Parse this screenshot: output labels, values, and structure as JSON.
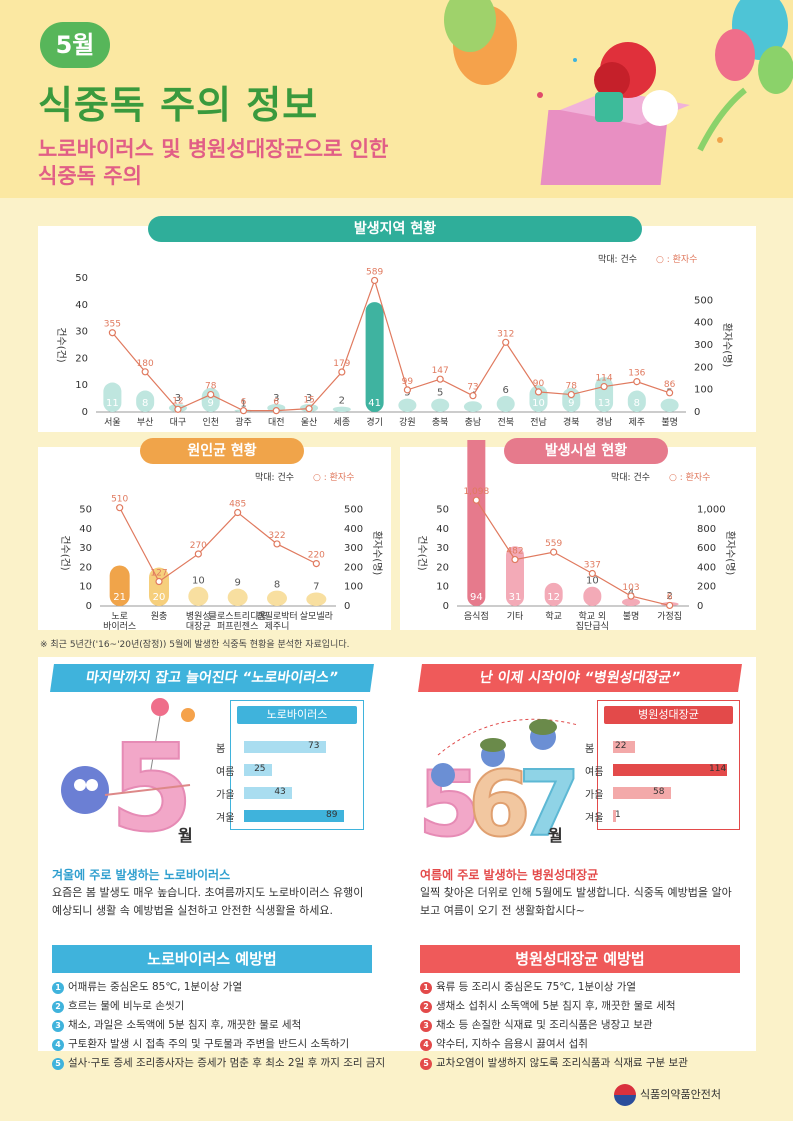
{
  "header": {
    "month": "5월",
    "title": "식중독 주의 정보",
    "subtitle_line1": "노로바이러스 및 병원성대장균으로 인한",
    "subtitle_line2": "식중독 주의"
  },
  "region": {
    "title": "발생지역 현황",
    "legend_bar": "막대: 건수",
    "legend_line": "○ : 환자수",
    "ylabel_left": "건수(건)",
    "ylabel_right": "환자수(명)",
    "chart_data": {
      "type": "bar+line",
      "categories": [
        "서울",
        "부산",
        "대구",
        "인천",
        "광주",
        "대전",
        "울산",
        "세종",
        "경기",
        "강원",
        "충북",
        "충남",
        "전북",
        "전남",
        "경북",
        "경남",
        "제주",
        "불명"
      ],
      "series": [
        {
          "name": "건수",
          "values": [
            11,
            8,
            3,
            9,
            1,
            3,
            3,
            2,
            41,
            5,
            5,
            4,
            6,
            10,
            9,
            13,
            8,
            5
          ]
        },
        {
          "name": "환자수",
          "values": [
            355,
            180,
            12,
            78,
            6,
            6,
            15,
            179,
            589,
            99,
            147,
            73,
            312,
            90,
            78,
            114,
            136,
            86
          ]
        }
      ],
      "ylim_left": [
        0,
        50
      ],
      "ylim_right": [
        0,
        600
      ],
      "yticks_left": [
        "0",
        "10",
        "20",
        "30",
        "40",
        "50"
      ],
      "yticks_right": [
        "0",
        "100",
        "200",
        "300",
        "400",
        "500"
      ]
    }
  },
  "cause": {
    "title": "원인균 현황",
    "legend_bar": "막대: 건수",
    "legend_line": "○ : 환자수",
    "ylabel_left": "건수(건)",
    "ylabel_right": "환자수(명)",
    "chart_data": {
      "type": "bar+line",
      "categories": [
        "노로\n바이러스",
        "원충",
        "병원성\n대장균",
        "클로스트리디움\n퍼프린젠스",
        "캠필로박터\n제주니",
        "살모넬라"
      ],
      "series": [
        {
          "name": "건수",
          "values": [
            21,
            20,
            10,
            9,
            8,
            7
          ]
        },
        {
          "name": "환자수",
          "values": [
            510,
            127,
            270,
            485,
            322,
            220
          ]
        }
      ],
      "ylim_left": [
        0,
        55
      ],
      "ylim_right": [
        0,
        550
      ],
      "yticks_left": [
        "0",
        "10",
        "20",
        "30",
        "40",
        "50"
      ],
      "yticks_right": [
        "0",
        "100",
        "200",
        "300",
        "400",
        "500"
      ]
    }
  },
  "facility": {
    "title": "발생시설 현황",
    "legend_bar": "막대: 건수",
    "legend_line": "○ : 환자수",
    "ylabel_left": "건수(건)",
    "ylabel_right": "환자수(명)",
    "chart_data": {
      "type": "bar+line",
      "categories": [
        "음식점",
        "기타",
        "학교",
        "학교 외\n집단급식",
        "불명",
        "가정집"
      ],
      "series": [
        {
          "name": "건수",
          "values": [
            94,
            31,
            12,
            10,
            4,
            2
          ]
        },
        {
          "name": "환자수",
          "values": [
            1098,
            482,
            559,
            337,
            103,
            6
          ]
        }
      ],
      "ylim_left": [
        0,
        55
      ],
      "ylim_right": [
        0,
        1100
      ],
      "yticks_left": [
        "0",
        "10",
        "20",
        "30",
        "40",
        "50"
      ],
      "yticks_right": [
        "0",
        "200",
        "400",
        "600",
        "800",
        "1,000"
      ]
    }
  },
  "note": "※ 최근 5년간('16~'20년(잠정)) 5월에 발생한 식중독 현황을 분석한 자료입니다.",
  "noro": {
    "banner": "마지막까지 잡고 늘어진다 “노로바이러스”",
    "box_title": "노로바이러스",
    "seasons": [
      {
        "label": "봄",
        "value": 73
      },
      {
        "label": "여름",
        "value": 25
      },
      {
        "label": "가을",
        "value": 43
      },
      {
        "label": "겨울",
        "value": 89
      }
    ],
    "big_num": "5",
    "big_suffix": "월",
    "heading": "겨울에 주로 발생하는 노로바이러스",
    "text": "요즘은 봄 발생도 매우 높습니다. 초여름까지도 노로바이러스 유행이 예상되니 생활 속 예방법을 실천하고 안전한 식생활을 하세요.",
    "prevent_title": "노로바이러스 예방법",
    "prevent": [
      "어패류는 중심온도 85℃, 1분이상 가열",
      "흐르는 물에 비누로 손씻기",
      "채소, 과일은 소독액에 5분 침지 후, 깨끗한 물로 세척",
      "구토환자 발생 시 접촉 주의 및 구토물과 주변을 반드시 소독하기",
      "설사·구토 증세 조리종사자는 증세가 멈춘 후 최소 2일 후 까지 조리 금지"
    ]
  },
  "ecoli": {
    "banner": "난 이제 시작이야 “병원성대장균”",
    "box_title": "병원성대장균",
    "seasons": [
      {
        "label": "봄",
        "value": 22
      },
      {
        "label": "여름",
        "value": 114
      },
      {
        "label": "가을",
        "value": 58
      },
      {
        "label": "겨울",
        "value": 1
      }
    ],
    "big_num": "567",
    "big_suffix": "월",
    "heading": "여름에 주로 발생하는 병원성대장균",
    "text": "일찍 찾아온 더위로 인해 5월에도 발생합니다. 식중독 예방법을 알아보고 여름이 오기 전 생활화합시다~",
    "prevent_title": "병원성대장균 예방법",
    "prevent": [
      "육류 등 조리시 중심온도 75℃, 1분이상 가열",
      "생채소 섭취시 소독액에 5분 침지 후, 깨끗한 물로 세척",
      "채소 등 손질한 식재료 및 조리식품은 냉장고 보관",
      "약수터, 지하수 음용시 끓여서 섭취",
      "교차오염이 발생하지 않도록 조리식품과 식재료 구분 보관"
    ]
  },
  "footer": "식품의약품안전처",
  "colors": {
    "green": "#57b65a",
    "teal": "#2fae9a",
    "orange": "#f0a44a",
    "pink": "#e67a8c",
    "noro_blue": "#3fb3dc",
    "ecoli_red": "#e34a4a",
    "line": "#e07a5f"
  }
}
